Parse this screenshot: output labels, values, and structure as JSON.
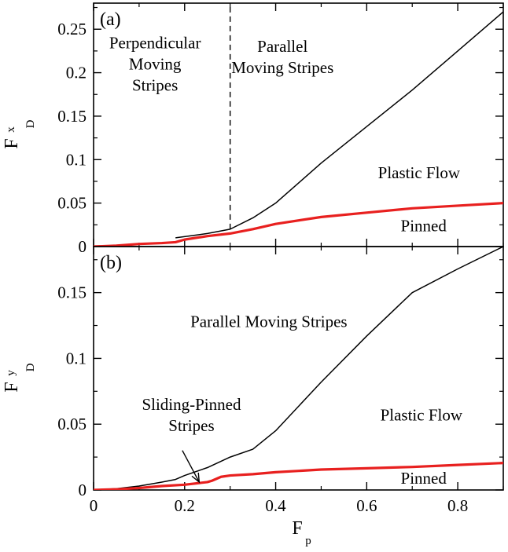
{
  "chart_data": [
    {
      "type": "line",
      "panel_label": "(a)",
      "ylabel": "F",
      "ylabel_sup": "x",
      "ylabel_sub": "D",
      "xlim": [
        0,
        0.9
      ],
      "ylim": [
        0,
        0.28
      ],
      "x_ticks": [
        0,
        0.2,
        0.4,
        0.6,
        0.8
      ],
      "y_ticks": [
        0,
        0.05,
        0.1,
        0.15,
        0.2,
        0.25
      ],
      "y_tick_labels": [
        "0",
        "0.05",
        "0.1",
        "0.15",
        "0.2",
        "0.25"
      ],
      "grid": false,
      "series": [
        {
          "style": "black-thin",
          "color": "#000000",
          "x": [
            0.18,
            0.25,
            0.3,
            0.35,
            0.4,
            0.5,
            0.6,
            0.7,
            0.8,
            0.9
          ],
          "y": [
            0.01,
            0.015,
            0.02,
            0.033,
            0.05,
            0.096,
            0.138,
            0.18,
            0.225,
            0.27
          ]
        },
        {
          "style": "red-thick",
          "color": "#e8201f",
          "x": [
            0.0,
            0.05,
            0.1,
            0.15,
            0.18,
            0.2,
            0.25,
            0.3,
            0.35,
            0.4,
            0.5,
            0.6,
            0.7,
            0.8,
            0.9
          ],
          "y": [
            0.0,
            0.001,
            0.003,
            0.004,
            0.005,
            0.008,
            0.012,
            0.015,
            0.02,
            0.026,
            0.034,
            0.039,
            0.044,
            0.047,
            0.05
          ]
        }
      ],
      "vline": {
        "x": 0.3,
        "y_from": 0.02,
        "y_to": 0.28,
        "dashed": true
      },
      "annotations": [
        {
          "id": "perp",
          "lines": [
            "Perpendicular",
            "Moving",
            "Stripes"
          ],
          "x": 0.135,
          "y": 0.21
        },
        {
          "id": "parallel",
          "lines": [
            "Parallel",
            "Moving Stripes"
          ],
          "x": 0.415,
          "y": 0.218
        },
        {
          "id": "plastic",
          "lines": [
            "Plastic Flow"
          ],
          "x": 0.715,
          "y": 0.085
        },
        {
          "id": "pinned",
          "lines": [
            "Pinned"
          ],
          "x": 0.725,
          "y": 0.024
        }
      ]
    },
    {
      "type": "line",
      "panel_label": "(b)",
      "xlabel": "F",
      "xlabel_sub": "p",
      "ylabel": "F",
      "ylabel_sup": "y",
      "ylabel_sub": "D",
      "xlim": [
        0,
        0.9
      ],
      "ylim": [
        0,
        0.185
      ],
      "x_ticks": [
        0,
        0.2,
        0.4,
        0.6,
        0.8
      ],
      "x_tick_labels": [
        "0",
        "0.2",
        "0.4",
        "0.6",
        "0.8"
      ],
      "y_ticks": [
        0,
        0.05,
        0.1,
        0.15
      ],
      "y_tick_labels": [
        "0",
        "0.05",
        "0.1",
        "0.15"
      ],
      "grid": false,
      "series": [
        {
          "style": "black-thin",
          "color": "#000000",
          "x": [
            0.0,
            0.05,
            0.1,
            0.15,
            0.18,
            0.2,
            0.25,
            0.3,
            0.35,
            0.4,
            0.5,
            0.6,
            0.7,
            0.8,
            0.9
          ],
          "y": [
            0.0,
            0.001,
            0.003,
            0.006,
            0.008,
            0.011,
            0.017,
            0.025,
            0.031,
            0.045,
            0.082,
            0.117,
            0.15,
            0.168,
            0.185
          ]
        },
        {
          "style": "red-thick",
          "color": "#e8201f",
          "x": [
            0.0,
            0.05,
            0.1,
            0.15,
            0.2,
            0.25,
            0.26,
            0.28,
            0.3,
            0.35,
            0.4,
            0.5,
            0.6,
            0.7,
            0.8,
            0.9
          ],
          "y": [
            0.0,
            0.0005,
            0.0015,
            0.003,
            0.004,
            0.006,
            0.007,
            0.01,
            0.011,
            0.012,
            0.0135,
            0.0155,
            0.0165,
            0.0175,
            0.019,
            0.0205
          ]
        }
      ],
      "annotations": [
        {
          "id": "parallel",
          "lines": [
            "Parallel Moving Stripes"
          ],
          "x": 0.385,
          "y": 0.128
        },
        {
          "id": "plastic",
          "lines": [
            "Plastic Flow"
          ],
          "x": 0.72,
          "y": 0.057
        },
        {
          "id": "sliding",
          "lines": [
            "Sliding-Pinned",
            "Stripes"
          ],
          "x": 0.215,
          "y": 0.057
        },
        {
          "id": "pinned",
          "lines": [
            "Pinned"
          ],
          "x": 0.725,
          "y": 0.009
        }
      ],
      "arrow": {
        "from_x": 0.195,
        "from_y": 0.03,
        "to_x": 0.232,
        "to_y": 0.006
      }
    }
  ]
}
